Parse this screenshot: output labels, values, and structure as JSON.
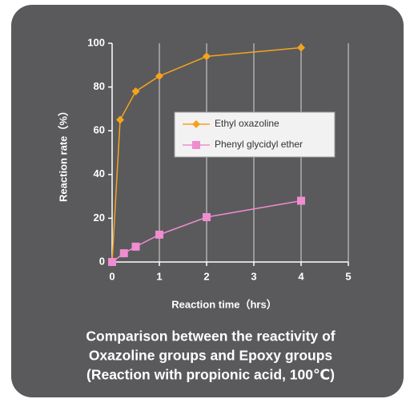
{
  "chart_data": {
    "type": "line",
    "title": [
      "Comparison between the reactivity of",
      "Oxazoline groups and Epoxy groups",
      "(Reaction with propionic acid, 100℃)"
    ],
    "x_label": "Reaction time（hrs）",
    "y_label": "Reaction rate（%）",
    "series": [
      {
        "name": "Ethyl oxazoline",
        "color": "#f5a31e",
        "marker": "diamond",
        "x": [
          0,
          0.17,
          0.5,
          1,
          2,
          4
        ],
        "values": [
          0,
          65,
          78,
          85,
          94,
          98
        ]
      },
      {
        "name": "Phenyl glycidyl ether",
        "color": "#f08cd0",
        "marker": "square",
        "x": [
          0,
          0.25,
          0.5,
          1,
          2,
          4
        ],
        "values": [
          0,
          4,
          7,
          12.5,
          20.5,
          28
        ]
      }
    ],
    "xlim": [
      0,
      5
    ],
    "xticks": [
      0,
      1,
      2,
      3,
      4,
      5
    ],
    "ylim": [
      0,
      100
    ],
    "yticks": [
      0,
      20,
      40,
      60,
      80,
      100
    ],
    "grid": "x",
    "legend": "right"
  }
}
